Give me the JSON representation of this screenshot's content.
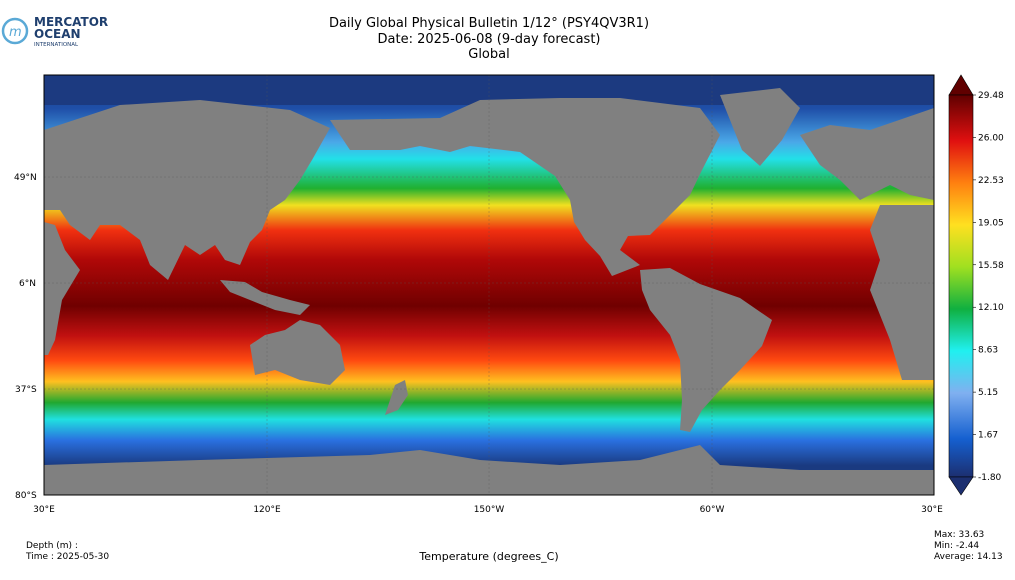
{
  "logo": {
    "line1": "MERCATOR",
    "line2": "OCEAN",
    "line3": "INTERNATIONAL"
  },
  "header": {
    "title": "Daily Global Physical Bulletin 1/12° (PSY4QV3R1)",
    "date": "Date: 2025-06-08 (9-day forecast)",
    "region": "Global"
  },
  "map": {
    "lat_labels": [
      "49°N",
      "6°N",
      "37°S",
      "80°S"
    ],
    "lon_labels": [
      "30°E",
      "120°E",
      "150°W",
      "60°W",
      "30°E"
    ]
  },
  "colorbar": {
    "clim": [
      -1.8,
      29.48
    ],
    "ticks": [
      {
        "value": -1.8,
        "label": "-1.80"
      },
      {
        "value": 1.67,
        "label": "1.67"
      },
      {
        "value": 5.15,
        "label": "5.15"
      },
      {
        "value": 8.63,
        "label": "8.63"
      },
      {
        "value": 12.1,
        "label": "12.10"
      },
      {
        "value": 15.58,
        "label": "15.58"
      },
      {
        "value": 19.05,
        "label": "19.05"
      },
      {
        "value": 22.53,
        "label": "22.53"
      },
      {
        "value": 26.0,
        "label": "26.00"
      },
      {
        "value": 29.48,
        "label": "29.48"
      }
    ]
  },
  "footer": {
    "depth": "Depth (m) :",
    "time": "Time : 2025-05-30",
    "variable": "Temperature (degrees_C)",
    "max": "Max: 33.63",
    "min": "Min: -2.44",
    "average": "Average: 14.13"
  }
}
